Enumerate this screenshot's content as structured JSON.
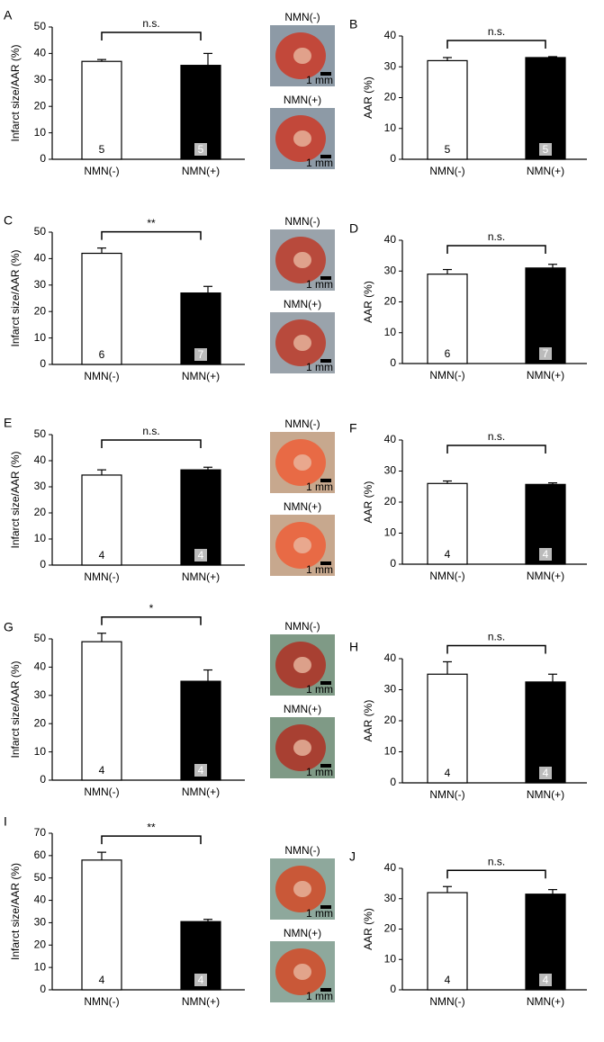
{
  "chart_data": [
    {
      "type": "bar",
      "panel": "A",
      "ylabel": "Infarct size/AAR (%)",
      "categories": [
        "NMN(-)",
        "NMN(+)"
      ],
      "values": [
        37,
        35.5
      ],
      "errors": [
        0.7,
        4.5
      ],
      "n": [
        5,
        5
      ],
      "significance": "n.s.",
      "ylim": [
        0,
        50
      ],
      "yticks": [
        0,
        10,
        20,
        30,
        40,
        50
      ],
      "colors": [
        "#ffffff",
        "#000000"
      ]
    },
    {
      "type": "bar",
      "panel": "B",
      "ylabel": "AAR (%)",
      "categories": [
        "NMN(-)",
        "NMN(+)"
      ],
      "values": [
        32,
        33
      ],
      "errors": [
        1,
        0.3
      ],
      "n": [
        5,
        5
      ],
      "significance": "n.s.",
      "ylim": [
        0,
        40
      ],
      "yticks": [
        0,
        10,
        20,
        30,
        40
      ],
      "colors": [
        "#ffffff",
        "#000000"
      ]
    },
    {
      "type": "bar",
      "panel": "C",
      "ylabel": "Infarct size/AAR (%)",
      "categories": [
        "NMN(-)",
        "NMN(+)"
      ],
      "values": [
        42,
        27
      ],
      "errors": [
        2,
        2.5
      ],
      "n": [
        6,
        7
      ],
      "significance": "**",
      "ylim": [
        0,
        50
      ],
      "yticks": [
        0,
        10,
        20,
        30,
        40,
        50
      ],
      "colors": [
        "#ffffff",
        "#000000"
      ]
    },
    {
      "type": "bar",
      "panel": "D",
      "ylabel": "AAR (%)",
      "categories": [
        "NMN(-)",
        "NMN(+)"
      ],
      "values": [
        29,
        31
      ],
      "errors": [
        1.5,
        1.2
      ],
      "n": [
        6,
        7
      ],
      "significance": "n.s.",
      "ylim": [
        0,
        40
      ],
      "yticks": [
        0,
        10,
        20,
        30,
        40
      ],
      "colors": [
        "#ffffff",
        "#000000"
      ]
    },
    {
      "type": "bar",
      "panel": "E",
      "ylabel": "Infarct size/AAR (%)",
      "categories": [
        "NMN(-)",
        "NMN(+)"
      ],
      "values": [
        34.5,
        36.5
      ],
      "errors": [
        2,
        1
      ],
      "n": [
        4,
        4
      ],
      "significance": "n.s.",
      "ylim": [
        0,
        50
      ],
      "yticks": [
        0,
        10,
        20,
        30,
        40,
        50
      ],
      "colors": [
        "#ffffff",
        "#000000"
      ]
    },
    {
      "type": "bar",
      "panel": "F",
      "ylabel": "AAR (%)",
      "categories": [
        "NMN(-)",
        "NMN(+)"
      ],
      "values": [
        26,
        25.7
      ],
      "errors": [
        0.8,
        0.5
      ],
      "n": [
        4,
        4
      ],
      "significance": "n.s.",
      "ylim": [
        0,
        40
      ],
      "yticks": [
        0,
        10,
        20,
        30,
        40
      ],
      "colors": [
        "#ffffff",
        "#000000"
      ]
    },
    {
      "type": "bar",
      "panel": "G",
      "ylabel": "Infarct size/AAR (%)",
      "categories": [
        "NMN(-)",
        "NMN(+)"
      ],
      "values": [
        49,
        35
      ],
      "errors": [
        3,
        4
      ],
      "n": [
        4,
        4
      ],
      "significance": "*",
      "ylim": [
        0,
        50
      ],
      "yticks": [
        0,
        10,
        20,
        30,
        40,
        50
      ],
      "colors": [
        "#ffffff",
        "#000000"
      ]
    },
    {
      "type": "bar",
      "panel": "H",
      "ylabel": "AAR (%)",
      "categories": [
        "NMN(-)",
        "NMN(+)"
      ],
      "values": [
        35,
        32.5
      ],
      "errors": [
        4,
        2.5
      ],
      "n": [
        4,
        4
      ],
      "significance": "n.s.",
      "ylim": [
        0,
        40
      ],
      "yticks": [
        0,
        10,
        20,
        30,
        40
      ],
      "colors": [
        "#ffffff",
        "#000000"
      ]
    },
    {
      "type": "bar",
      "panel": "I",
      "ylabel": "Infarct size/AAR (%)",
      "categories": [
        "NMN(-)",
        "NMN(+)"
      ],
      "values": [
        58,
        30.5
      ],
      "errors": [
        3.5,
        1
      ],
      "n": [
        4,
        4
      ],
      "significance": "**",
      "ylim": [
        0,
        70
      ],
      "yticks": [
        0,
        10,
        20,
        30,
        40,
        50,
        60,
        70
      ],
      "colors": [
        "#ffffff",
        "#000000"
      ]
    },
    {
      "type": "bar",
      "panel": "J",
      "ylabel": "AAR (%)",
      "categories": [
        "NMN(-)",
        "NMN(+)"
      ],
      "values": [
        32,
        31.5
      ],
      "errors": [
        2,
        1.5
      ],
      "n": [
        4,
        4
      ],
      "significance": "n.s.",
      "ylim": [
        0,
        40
      ],
      "yticks": [
        0,
        10,
        20,
        30,
        40
      ],
      "colors": [
        "#ffffff",
        "#000000"
      ]
    }
  ],
  "photos": [
    {
      "label": "NMN(-)",
      "scale": "1 mm"
    },
    {
      "label": "NMN(+)",
      "scale": "1 mm"
    },
    {
      "label": "NMN(-)",
      "scale": "1 mm"
    },
    {
      "label": "NMN(+)",
      "scale": "1 mm"
    },
    {
      "label": "NMN(-)",
      "scale": "1 mm"
    },
    {
      "label": "NMN(+)",
      "scale": "1 mm"
    },
    {
      "label": "NMN(-)",
      "scale": "1 mm"
    },
    {
      "label": "NMN(+)",
      "scale": "1 mm"
    },
    {
      "label": "NMN(-)",
      "scale": "1 mm"
    },
    {
      "label": "NMN(+)",
      "scale": "1 mm"
    }
  ]
}
